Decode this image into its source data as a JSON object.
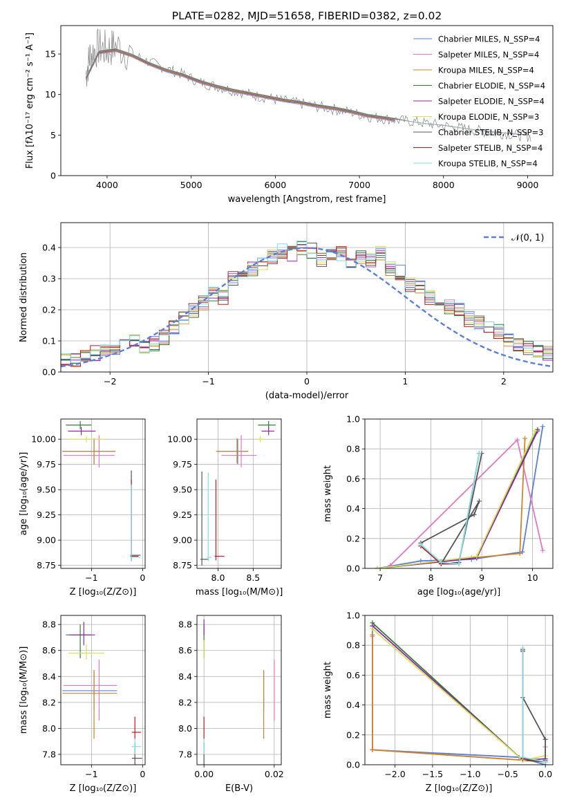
{
  "figure": {
    "title": "PLATE=0282, MJD=51658, FIBERID=0382, z=0.02",
    "colors": [
      "#5b7fd6",
      "#e377c2",
      "#c8862b",
      "#2e7d32",
      "#8e24aa",
      "#d4e157",
      "#555555",
      "#b71c1c",
      "#80deea"
    ]
  },
  "chart_data": [
    {
      "id": "spectrum",
      "type": "line",
      "xlabel": "wavelength [Angstrom, rest frame]",
      "ylabel": "Flux [fλ10⁻¹⁷ erg cm⁻² s⁻¹ A⁻¹]",
      "xlim": [
        3450,
        9300
      ],
      "ylim": [
        0,
        18.5
      ],
      "xticks": [
        4000,
        5000,
        6000,
        7000,
        8000,
        9000
      ],
      "yticks": [
        0,
        5,
        10,
        15
      ],
      "legend": "upper right",
      "legend_entries": [
        "Chabrier MILES, N_SSP=4",
        "Salpeter MILES, N_SSP=4",
        "Kroupa MILES, N_SSP=4",
        "Chabrier ELODIE, N_SSP=4",
        "Salpeter ELODIE, N_SSP=4",
        "Kroupa ELODIE, N_SSP=3",
        "Chabrier STELIB, N_SSP=3",
        "Salpeter STELIB, N_SSP=4",
        "Kroupa STELIB, N_SSP=4"
      ],
      "observed": {
        "x": [
          3750,
          3800,
          3900,
          4000,
          4100,
          4300,
          4500,
          4700,
          4900,
          5100,
          5300,
          5500,
          5700,
          5900,
          6100,
          6300,
          6500,
          6700,
          6900,
          7100,
          7300,
          7500,
          7700,
          7900,
          8100,
          8300,
          8500,
          8700,
          8900,
          9050
        ],
        "y": [
          12.5,
          15.0,
          15.8,
          15.5,
          16.0,
          15.0,
          14.0,
          13.2,
          12.5,
          11.5,
          11.0,
          10.5,
          10.0,
          9.6,
          9.2,
          8.9,
          8.5,
          8.2,
          7.8,
          7.3,
          7.0,
          6.8,
          6.6,
          6.3,
          6.0,
          5.7,
          5.4,
          5.2,
          5.0,
          4.8
        ]
      },
      "models": {
        "x": [
          3750,
          3900,
          4100,
          4300,
          4500,
          4700,
          4900,
          5100,
          5300,
          5500,
          5700,
          5900,
          6100,
          6300,
          6500,
          6700,
          6900,
          7100,
          7300,
          7420
        ],
        "y": [
          12.0,
          15.2,
          15.5,
          14.8,
          13.8,
          13.0,
          12.4,
          11.6,
          11.0,
          10.5,
          10.1,
          9.7,
          9.3,
          9.0,
          8.6,
          8.3,
          7.9,
          7.4,
          7.1,
          6.9
        ],
        "stelib_x": [
          7420,
          7600,
          7800,
          8000,
          8200,
          8400,
          8600,
          8800,
          9000
        ],
        "stelib_y": [
          6.9,
          6.7,
          6.4,
          6.2,
          5.9,
          5.6,
          5.4,
          5.2,
          5.0
        ]
      }
    },
    {
      "id": "residuals",
      "type": "histogram",
      "xlabel": "(data-model)/error",
      "ylabel": "Normed distribution",
      "xlim": [
        -2.5,
        2.5
      ],
      "ylim": [
        0,
        0.48
      ],
      "xticks": [
        -2,
        -1,
        0,
        1,
        2
      ],
      "yticks": [
        0.0,
        0.1,
        0.2,
        0.3,
        0.4
      ],
      "grid": true,
      "legend": "upper right",
      "legend_entries": [
        "𝒩(0, 1)"
      ],
      "bin_edges_start": -2.5,
      "bin_width": 0.1,
      "base_values": [
        0.04,
        0.04,
        0.05,
        0.06,
        0.07,
        0.08,
        0.09,
        0.1,
        0.08,
        0.09,
        0.11,
        0.14,
        0.17,
        0.2,
        0.22,
        0.25,
        0.24,
        0.3,
        0.31,
        0.33,
        0.35,
        0.37,
        0.39,
        0.38,
        0.4,
        0.39,
        0.36,
        0.37,
        0.38,
        0.34,
        0.37,
        0.36,
        0.38,
        0.33,
        0.32,
        0.28,
        0.27,
        0.24,
        0.23,
        0.21,
        0.2,
        0.17,
        0.16,
        0.15,
        0.13,
        0.1,
        0.09,
        0.08,
        0.07,
        0.06
      ]
    },
    {
      "id": "age-metal",
      "type": "scatter",
      "xlabel": "Z [log₁₀(Z/Z⊙)]",
      "ylabel": "age  [log₁₀(age/yr)]",
      "xlim": [
        -1.6,
        0.05
      ],
      "ylim": [
        8.72,
        10.2
      ],
      "xticks": [
        -1,
        0
      ],
      "yticks": [
        8.75,
        9.0,
        9.25,
        9.5,
        9.75,
        10.0
      ],
      "grid": true,
      "points": [
        {
          "x": -0.95,
          "y": 9.88,
          "xerr": [
            0.62,
            0.42
          ],
          "yerr": [
            0.13,
            0.12
          ]
        },
        {
          "x": -0.85,
          "y": 9.84,
          "xerr": [
            0.7,
            0.3
          ],
          "yerr": [
            0.12,
            0.2
          ]
        },
        {
          "x": -0.95,
          "y": 9.88,
          "xerr": [
            0.62,
            0.42
          ],
          "yerr": [
            0.12,
            0.13
          ]
        },
        {
          "x": -1.22,
          "y": 10.14,
          "xerr": [
            0.28,
            0.22
          ],
          "yerr": [
            0.04,
            0.04
          ]
        },
        {
          "x": -1.2,
          "y": 10.08,
          "xerr": [
            0.26,
            0.28
          ],
          "yerr": [
            0.04,
            0.04
          ]
        },
        {
          "x": -1.1,
          "y": 10.0,
          "xerr": [
            0.35,
            0.35
          ],
          "yerr": [
            0.03,
            0.03
          ]
        },
        {
          "x": -0.22,
          "y": 8.85,
          "xerr": [
            0.02,
            0.18
          ],
          "yerr": [
            0.06,
            0.84
          ]
        },
        {
          "x": -0.22,
          "y": 8.84,
          "xerr": [
            0.02,
            0.14
          ],
          "yerr": [
            0.04,
            0.76
          ]
        },
        {
          "x": -0.22,
          "y": 8.83,
          "xerr": [
            0.02,
            0.18
          ],
          "yerr": [
            0.04,
            0.72
          ]
        }
      ]
    },
    {
      "id": "age-mass",
      "type": "scatter",
      "xlabel": "mass [log₁₀(M/M⊙)]",
      "ylabel": "",
      "xlim": [
        7.7,
        8.9
      ],
      "ylim": [
        8.72,
        10.2
      ],
      "xticks": [
        8.0,
        8.5
      ],
      "yticks": [
        8.75,
        9.0,
        9.25,
        9.5,
        9.75,
        10.0
      ],
      "grid": true,
      "points": [
        {
          "x": 8.28,
          "y": 9.88,
          "xerr": [
            0.3,
            0.15
          ],
          "yerr": [
            0.13,
            0.12
          ]
        },
        {
          "x": 8.33,
          "y": 9.84,
          "xerr": [
            0.28,
            0.22
          ],
          "yerr": [
            0.12,
            0.2
          ]
        },
        {
          "x": 8.27,
          "y": 9.88,
          "xerr": [
            0.3,
            0.15
          ],
          "yerr": [
            0.12,
            0.13
          ]
        },
        {
          "x": 8.72,
          "y": 10.14,
          "xerr": [
            0.15,
            0.1
          ],
          "yerr": [
            0.04,
            0.04
          ]
        },
        {
          "x": 8.72,
          "y": 10.08,
          "xerr": [
            0.1,
            0.08
          ],
          "yerr": [
            0.04,
            0.04
          ]
        },
        {
          "x": 8.6,
          "y": 10.0,
          "xerr": [
            0.05,
            0.08
          ],
          "yerr": [
            0.03,
            0.03
          ]
        },
        {
          "x": 7.77,
          "y": 8.81,
          "xerr": [
            0.02,
            0.1
          ],
          "yerr": [
            0.06,
            0.87
          ]
        },
        {
          "x": 7.97,
          "y": 8.84,
          "xerr": [
            0.02,
            0.12
          ],
          "yerr": [
            0.04,
            0.76
          ]
        },
        {
          "x": 7.86,
          "y": 8.83,
          "xerr": [
            0.02,
            0.05
          ],
          "yerr": [
            0.04,
            0.84
          ]
        }
      ]
    },
    {
      "id": "weight-age",
      "type": "line",
      "xlabel": "age  [log₁₀(age/yr)]",
      "ylabel": "mass weight",
      "xlim": [
        6.7,
        10.4
      ],
      "ylim": [
        0,
        1.0
      ],
      "xticks": [
        7,
        8,
        9,
        10
      ],
      "yticks": [
        0.0,
        0.2,
        0.4,
        0.6,
        0.8,
        1.0
      ],
      "grid": true,
      "series": [
        {
          "x": [
            6.95,
            7.8,
            8.8,
            9.8,
            10.2
          ],
          "y": [
            0.0,
            0.05,
            0.06,
            0.11,
            0.95
          ]
        },
        {
          "x": [
            7.2,
            9.7,
            10.2
          ],
          "y": [
            0.02,
            0.86,
            0.12
          ]
        },
        {
          "x": [
            6.95,
            8.8,
            9.75,
            9.85
          ],
          "y": [
            0.0,
            0.07,
            0.1,
            0.87
          ]
        },
        {
          "x": [
            6.95,
            8.9,
            10.1
          ],
          "y": [
            0.0,
            0.07,
            0.93
          ]
        },
        {
          "x": [
            6.95,
            8.9,
            10.1
          ],
          "y": [
            0.0,
            0.07,
            0.92
          ]
        },
        {
          "x": [
            6.95,
            8.9,
            10.05
          ],
          "y": [
            0.0,
            0.08,
            0.92
          ]
        },
        {
          "x": [
            7.8,
            8.85,
            8.95,
            8.2,
            8.55,
            9.0
          ],
          "y": [
            0.17,
            0.36,
            0.45,
            0.03,
            0.04,
            0.77
          ]
        },
        {
          "x": [
            7.8,
            8.2,
            8.55,
            8.95
          ],
          "y": [
            0.15,
            0.03,
            0.03,
            0.77
          ]
        },
        {
          "x": [
            7.8,
            8.2,
            8.55,
            8.95
          ],
          "y": [
            0.16,
            0.04,
            0.03,
            0.77
          ]
        }
      ]
    },
    {
      "id": "mass-metal",
      "type": "scatter",
      "xlabel": "Z [log₁₀(Z/Z⊙)]",
      "ylabel": "mass [log₁₀(M/M⊙)]",
      "xlim": [
        -1.6,
        0.05
      ],
      "ylim": [
        7.72,
        8.87
      ],
      "xticks": [
        -1,
        0
      ],
      "yticks": [
        7.8,
        8.0,
        8.2,
        8.4,
        8.6,
        8.8
      ],
      "grid": true,
      "points": [
        {
          "x": -0.95,
          "y": 8.29,
          "xerr": [
            0.62,
            0.45
          ],
          "yerr": [
            0.15,
            0.15
          ]
        },
        {
          "x": -0.85,
          "y": 8.33,
          "xerr": [
            0.7,
            0.35
          ],
          "yerr": [
            0.27,
            0.2
          ]
        },
        {
          "x": -0.95,
          "y": 8.27,
          "xerr": [
            0.62,
            0.45
          ],
          "yerr": [
            0.35,
            0.18
          ]
        },
        {
          "x": -1.22,
          "y": 8.72,
          "xerr": [
            0.28,
            0.22
          ],
          "yerr": [
            0.18,
            0.08
          ]
        },
        {
          "x": -1.15,
          "y": 8.72,
          "xerr": [
            0.28,
            0.22
          ],
          "yerr": [
            0.08,
            0.1
          ]
        },
        {
          "x": -1.1,
          "y": 8.58,
          "xerr": [
            0.35,
            0.35
          ],
          "yerr": [
            0.05,
            0.07
          ]
        },
        {
          "x": -0.15,
          "y": 7.77,
          "xerr": [
            0.06,
            0.14
          ],
          "yerr": [
            0.06,
            0.12
          ]
        },
        {
          "x": -0.15,
          "y": 7.97,
          "xerr": [
            0.06,
            0.12
          ],
          "yerr": [
            0.05,
            0.12
          ]
        },
        {
          "x": -0.15,
          "y": 7.86,
          "xerr": [
            0.06,
            0.12
          ],
          "yerr": [
            0.06,
            0.06
          ]
        }
      ]
    },
    {
      "id": "mass-ebv",
      "type": "scatter",
      "xlabel": "E(B-V)",
      "ylabel": "",
      "xlim": [
        -0.002,
        0.022
      ],
      "ylim": [
        7.72,
        8.87
      ],
      "xticks": [
        0.0,
        0.02
      ],
      "yticks": [
        7.8,
        8.0,
        8.2,
        8.4,
        8.6,
        8.8
      ],
      "grid": true,
      "points": [
        {
          "x": 0.017,
          "y": 8.29,
          "xerr": [
            0,
            0
          ],
          "yerr": [
            0.15,
            0.15
          ]
        },
        {
          "x": 0.02,
          "y": 8.33,
          "xerr": [
            0,
            0
          ],
          "yerr": [
            0.27,
            0.2
          ]
        },
        {
          "x": 0.017,
          "y": 8.27,
          "xerr": [
            0,
            0
          ],
          "yerr": [
            0.35,
            0.18
          ]
        },
        {
          "x": 0.0,
          "y": 8.72,
          "xerr": [
            0,
            0
          ],
          "yerr": [
            0.18,
            0.08
          ]
        },
        {
          "x": 0.0,
          "y": 8.8,
          "xerr": [
            0,
            0
          ],
          "yerr": [
            0.08,
            0.04
          ]
        },
        {
          "x": 0.0,
          "y": 8.6,
          "xerr": [
            0,
            0
          ],
          "yerr": [
            0.06,
            0.08
          ]
        },
        {
          "x": 0.0,
          "y": 7.77,
          "xerr": [
            0,
            0
          ],
          "yerr": [
            0.06,
            0.12
          ]
        },
        {
          "x": 0.0,
          "y": 7.97,
          "xerr": [
            0,
            0
          ],
          "yerr": [
            0.05,
            0.12
          ]
        },
        {
          "x": 0.0,
          "y": 7.86,
          "xerr": [
            0,
            0
          ],
          "yerr": [
            0.06,
            0.06
          ]
        }
      ]
    },
    {
      "id": "weight-metal",
      "type": "line",
      "xlabel": "Z [log₁₀(Z/Z⊙)]",
      "ylabel": "mass weight",
      "xlim": [
        -2.4,
        0.1
      ],
      "ylim": [
        0,
        1.0
      ],
      "xticks": [
        -2.0,
        -1.5,
        -1.0,
        -0.5,
        0.0
      ],
      "yticks": [
        0.0,
        0.2,
        0.4,
        0.6,
        0.8,
        1.0
      ],
      "grid": true,
      "series": [
        {
          "x": [
            -2.3,
            -2.3,
            -0.35,
            0.0
          ],
          "y": [
            0.93,
            0.1,
            0.05,
            0.0
          ]
        },
        {
          "x": [
            -2.3,
            -2.3,
            0.0,
            0.0
          ],
          "y": [
            0.86,
            0.1,
            0.02,
            0.12
          ]
        },
        {
          "x": [
            -2.3,
            -2.3,
            0.0
          ],
          "y": [
            0.87,
            0.1,
            0.02
          ]
        },
        {
          "x": [
            -2.3,
            -0.3,
            0.0
          ],
          "y": [
            0.95,
            0.03,
            0.02
          ]
        },
        {
          "x": [
            -2.3,
            -0.3,
            0.0
          ],
          "y": [
            0.93,
            0.03,
            0.04
          ]
        },
        {
          "x": [
            -2.3,
            -0.3,
            0.0
          ],
          "y": [
            0.91,
            0.03,
            0.06
          ]
        },
        {
          "x": [
            -0.3,
            -0.3,
            0.0,
            0.0
          ],
          "y": [
            0.76,
            0.45,
            0.17,
            0.03
          ]
        },
        {
          "x": [
            -0.3,
            -0.3,
            0.0
          ],
          "y": [
            0.77,
            0.04,
            0.02
          ]
        },
        {
          "x": [
            -0.3,
            -0.3,
            0.0
          ],
          "y": [
            0.78,
            0.05,
            0.02
          ]
        }
      ]
    }
  ]
}
